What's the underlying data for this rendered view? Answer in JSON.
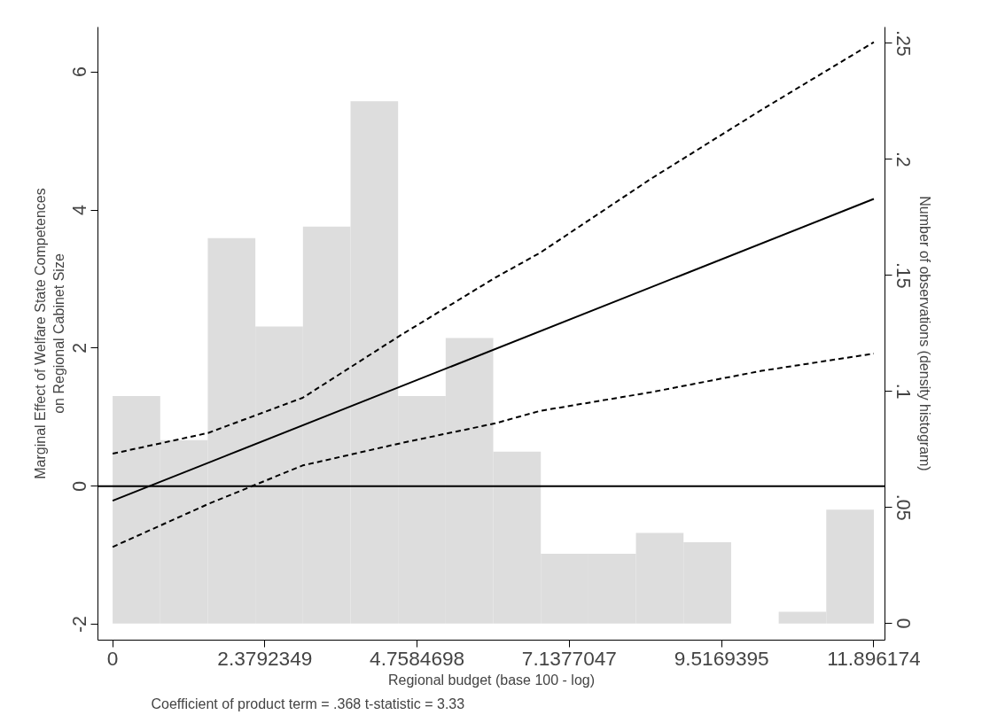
{
  "chart_data": {
    "type": "line",
    "xlabel": "Regional budget (base 100 - log)",
    "ylabel": "Marginal Effect of Welfare State Competences\non Regional Cabinet Size",
    "y2label": "Number of observations (density histogram)",
    "annotations": [
      "Coefficient of product term = .368 t-statistic = 3.33"
    ],
    "xlim": [
      -0.23,
      12.07
    ],
    "ylim": [
      -2.23,
      6.65
    ],
    "y2lim": [
      -0.0072,
      0.257
    ],
    "xticks": [
      0,
      2.3792349,
      4.7584698,
      7.1377047,
      9.5169395,
      11.896174
    ],
    "yticks": [
      -2,
      0,
      2,
      4,
      6
    ],
    "y2ticks": [
      0,
      {
        "value": 0.05,
        "label": ".05"
      },
      {
        "value": 0.1,
        "label": ".1"
      },
      {
        "value": 0.15,
        "label": ".15"
      },
      {
        "value": 0.2,
        "label": ".2"
      },
      {
        "value": 0.25,
        "label": ".25"
      }
    ],
    "grid": false,
    "ref_lines": [
      {
        "axis": "y",
        "value": 0,
        "color": "#000000"
      }
    ],
    "series": [
      {
        "type": "histogram",
        "axis": "y2",
        "color": "#dddddd",
        "bins": [
          0,
          0.7435,
          1.487,
          2.2305,
          2.9741,
          3.7176,
          4.4611,
          5.2046,
          5.9481,
          6.6917,
          7.4352,
          8.1787,
          8.9222,
          9.6657,
          10.4093,
          11.1528,
          11.8962
        ],
        "values": [
          0.098,
          0.079,
          0.166,
          0.128,
          0.171,
          0.225,
          0.098,
          0.123,
          0.074,
          0.03,
          0.03,
          0.039,
          0.035,
          0,
          0.005,
          0.049
        ]
      },
      {
        "color": "#000000",
        "line_style": "solid",
        "x": [
          0,
          11.896
        ],
        "values": [
          -0.21,
          4.16
        ]
      },
      {
        "color": "#000000",
        "line_style": "dashed",
        "x": [
          0,
          1.49,
          2.97,
          4.49,
          5.98,
          6.68,
          8.41,
          10.14,
          11.896
        ],
        "values": [
          0.47,
          0.77,
          1.28,
          2.18,
          3.02,
          3.38,
          4.45,
          5.45,
          6.43
        ]
      },
      {
        "color": "#000000",
        "line_style": "dashed",
        "x": [
          0,
          1.49,
          2.97,
          4.49,
          5.98,
          6.68,
          8.41,
          10.14,
          11.896
        ],
        "values": [
          -0.88,
          -0.26,
          0.3,
          0.62,
          0.91,
          1.09,
          1.36,
          1.67,
          1.92
        ]
      }
    ]
  }
}
